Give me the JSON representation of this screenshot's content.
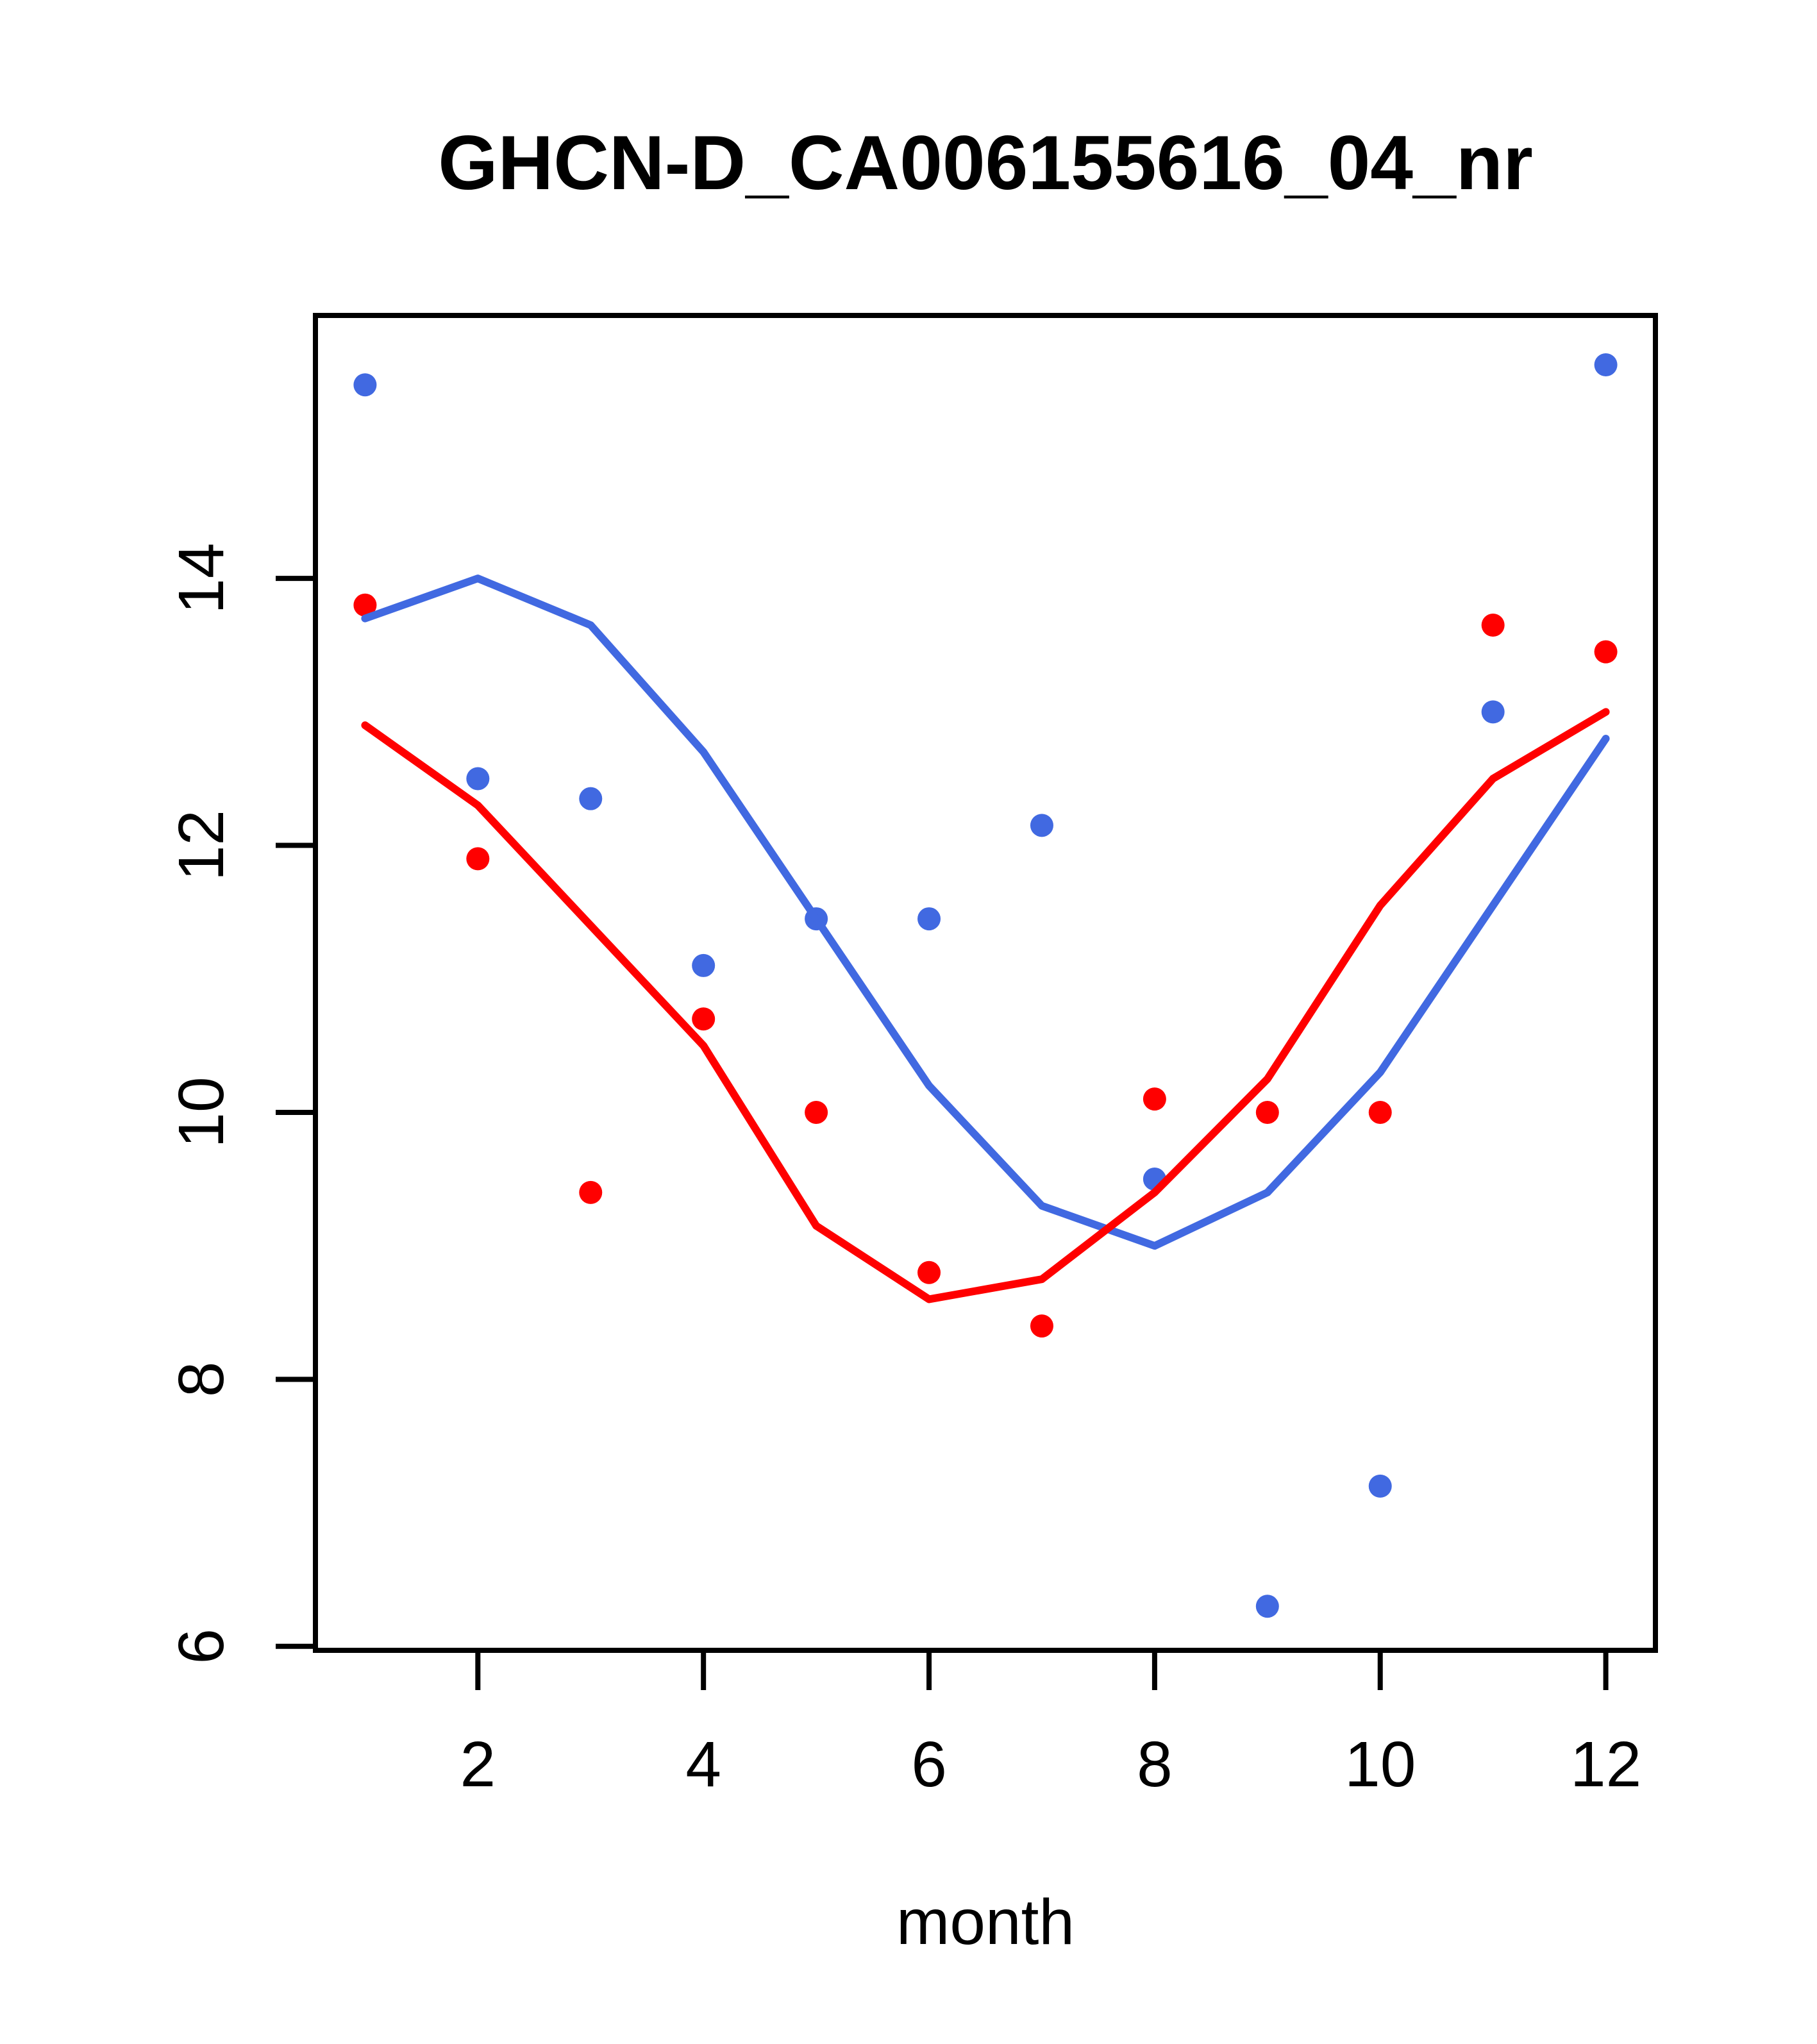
{
  "page": {
    "background": "#ffffff"
  },
  "chart_data": {
    "type": "scatter",
    "title": "GHCN-D_CA006155616_04_nr",
    "xlabel": "month",
    "ylabel": "",
    "x": [
      1,
      2,
      3,
      4,
      5,
      6,
      7,
      8,
      9,
      10,
      11,
      12
    ],
    "series": [
      {
        "name": "blue-points",
        "type": "scatter",
        "color": "#4169E1",
        "values": [
          15.45,
          12.5,
          12.35,
          11.1,
          11.45,
          11.45,
          12.15,
          9.5,
          6.3,
          7.2,
          13.0,
          15.6
        ]
      },
      {
        "name": "red-points",
        "type": "scatter",
        "color": "#FF0000",
        "values": [
          13.8,
          11.9,
          9.4,
          10.7,
          10.0,
          8.8,
          8.4,
          10.1,
          10.0,
          10.0,
          13.65,
          13.45
        ]
      },
      {
        "name": "blue-smooth-line",
        "type": "line",
        "color": "#4169E1",
        "values": [
          13.7,
          14.0,
          13.65,
          12.7,
          11.45,
          10.2,
          9.3,
          9.0,
          9.4,
          10.3,
          11.55,
          12.8
        ]
      },
      {
        "name": "red-smooth-line",
        "type": "line",
        "color": "#FF0000",
        "values": [
          12.9,
          12.3,
          11.4,
          10.5,
          9.15,
          8.6,
          8.75,
          9.4,
          10.25,
          11.55,
          12.5,
          13.0
        ]
      }
    ],
    "xticks": [
      2,
      4,
      6,
      8,
      10,
      12
    ],
    "yticks": [
      6,
      8,
      10,
      12,
      14
    ],
    "xlim": [
      0.56,
      12.44
    ],
    "ylim": [
      5.97,
      15.97
    ],
    "grid": false,
    "legend": null,
    "frame_color": "#000000"
  }
}
